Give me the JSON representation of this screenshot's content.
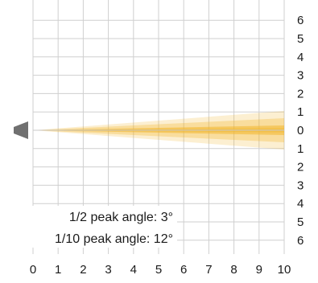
{
  "chart_data": {
    "type": "beam-pattern",
    "x_ticks": [
      "0",
      "1",
      "2",
      "3",
      "4",
      "5",
      "6",
      "7",
      "8",
      "9",
      "10"
    ],
    "y_ticks_upper": [
      "6",
      "5",
      "4",
      "3",
      "2",
      "1",
      "0"
    ],
    "y_ticks_lower": [
      "1",
      "2",
      "3",
      "4",
      "5",
      "6"
    ],
    "xlim": [
      0,
      10
    ],
    "ylim": [
      -6,
      6
    ],
    "half_peak_angle_deg": 3,
    "tenth_peak_angle_deg": 12,
    "annotations": {
      "half_peak": "1/2 peak angle: 3°",
      "tenth_peak": "1/10 peak angle: 12°"
    },
    "grid": true,
    "beam_color": "#f2b72e",
    "source_color": "#707070"
  }
}
